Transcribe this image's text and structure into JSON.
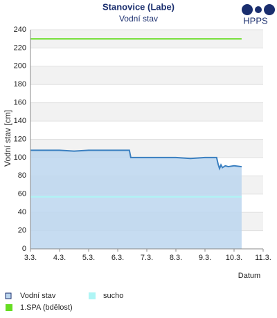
{
  "logo": "HPPS",
  "chart_data": {
    "type": "line",
    "title": "Stanovice (Labe)",
    "subtitle": "Vodní stav",
    "x_label": "Datum",
    "y_label": "Vodní stav [cm]",
    "xlim": [
      3,
      11
    ],
    "xticks": [
      {
        "value": 3,
        "label": "3.3."
      },
      {
        "value": 4,
        "label": "4.3."
      },
      {
        "value": 5,
        "label": "5.3."
      },
      {
        "value": 6,
        "label": "6.3."
      },
      {
        "value": 7,
        "label": "7.3."
      },
      {
        "value": 8,
        "label": "8.3."
      },
      {
        "value": 9,
        "label": "9.3."
      },
      {
        "value": 10,
        "label": "10.3."
      },
      {
        "value": 11,
        "label": "11.3."
      }
    ],
    "ylim": [
      0,
      240
    ],
    "yticks": [
      0,
      20,
      40,
      60,
      80,
      100,
      120,
      140,
      160,
      180,
      200,
      220,
      240
    ],
    "grid": true,
    "series": [
      {
        "name": "Vodní stav",
        "color": "#3a7fc0",
        "fill": "#bcd6ee",
        "x": [
          3,
          3.5,
          4,
          4.5,
          5,
          5.5,
          6,
          6.4,
          6.45,
          7,
          7.5,
          8,
          8.5,
          9,
          9.4,
          9.45,
          9.5,
          9.55,
          9.6,
          9.7,
          9.8,
          10,
          10.26
        ],
        "values": [
          108,
          108,
          108,
          107,
          108,
          108,
          108,
          108,
          100,
          100,
          100,
          100,
          99,
          100,
          100,
          93,
          88,
          92,
          89,
          91,
          90,
          91,
          90
        ]
      },
      {
        "name": "sucho",
        "color": "#aef5f5",
        "x": [
          3,
          10.26
        ],
        "values": [
          57,
          57
        ]
      },
      {
        "name": "1.SPA (bdělost)",
        "color": "#66dd22",
        "x": [
          3,
          10.26
        ],
        "values": [
          230,
          230
        ]
      }
    ]
  }
}
